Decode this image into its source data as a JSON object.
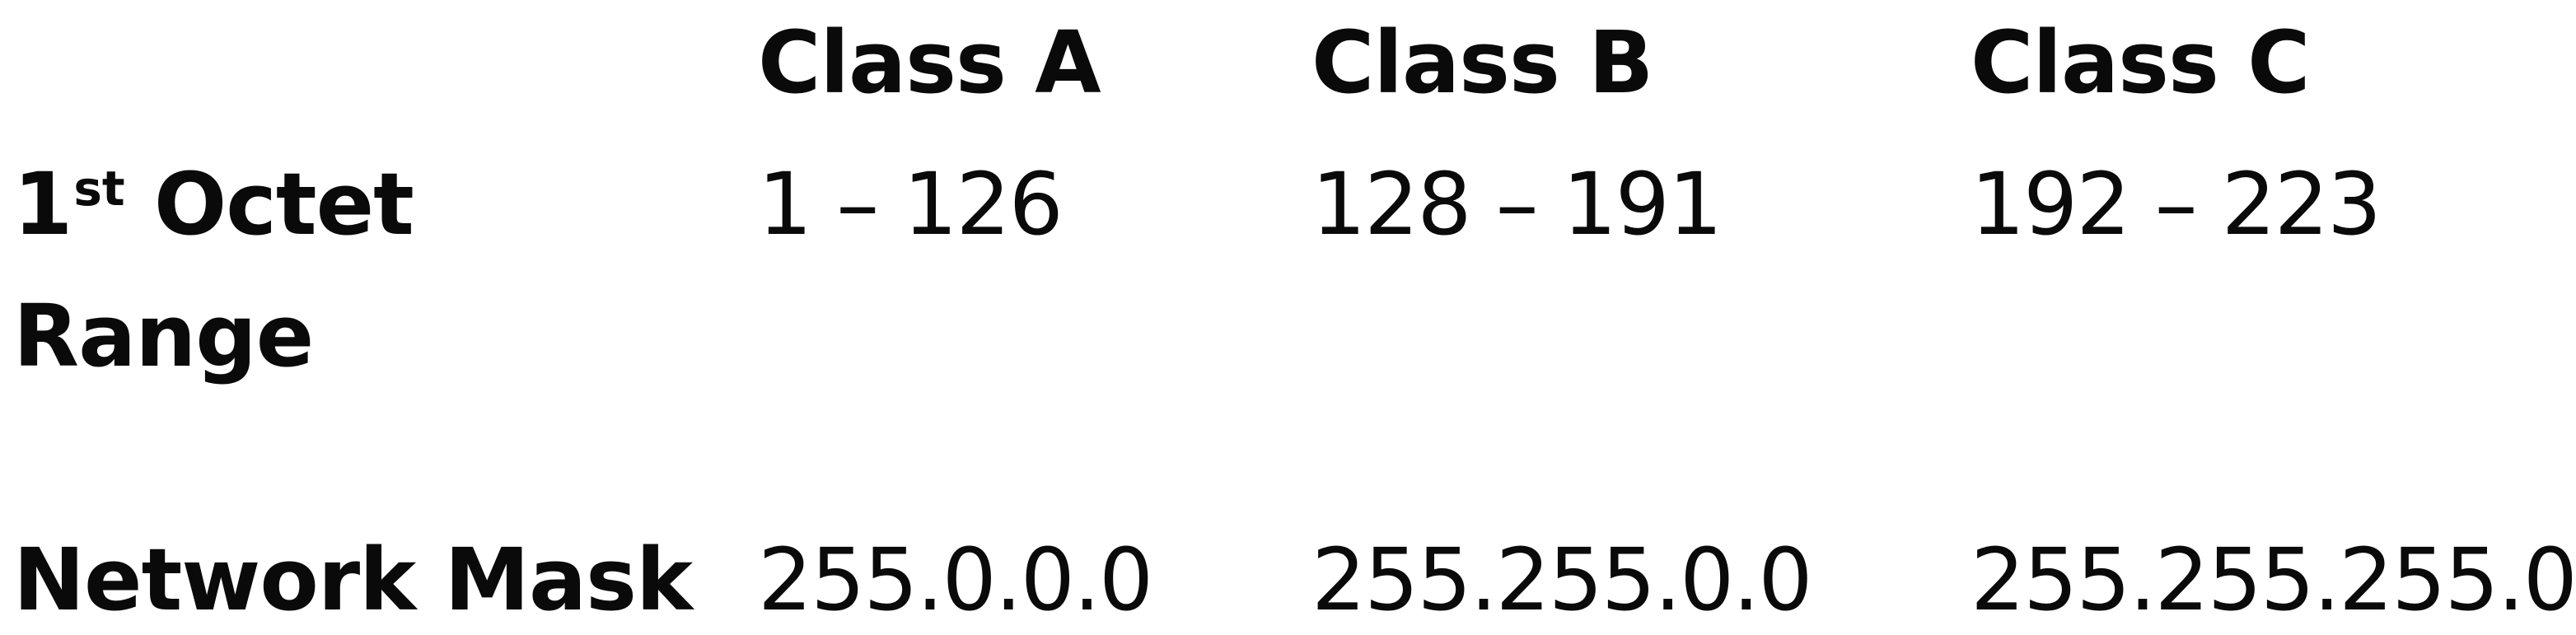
{
  "headers": {
    "class_a": "Class A",
    "class_b": "Class B",
    "class_c": "Class C"
  },
  "rows": {
    "octet_range": {
      "label_number": "1",
      "label_ordinal": "st",
      "label_word": "Octet",
      "label_line2": "Range",
      "class_a": "1 – 126",
      "class_b": "128 – 191",
      "class_c": "192 – 223"
    },
    "network_mask": {
      "label": "Network Mask",
      "class_a": "255.0.0.0",
      "class_b": "255.255.0.0",
      "class_c": "255.255.255.0"
    }
  }
}
